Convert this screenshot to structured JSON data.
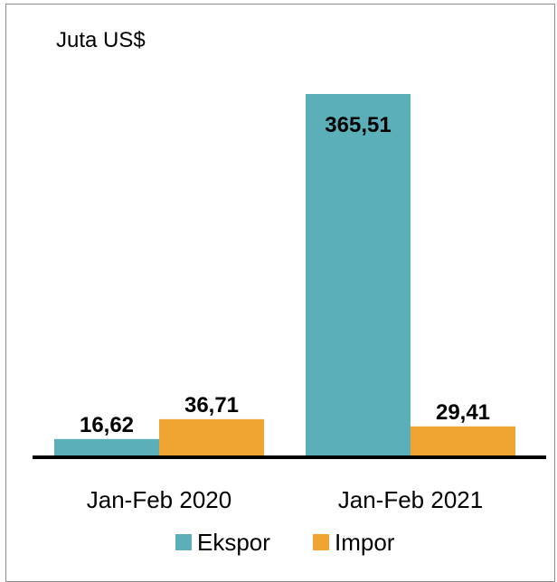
{
  "chart_data": {
    "type": "bar",
    "unit_label": "Juta US$",
    "categories": [
      "Jan-Feb 2020",
      "Jan-Feb 2021"
    ],
    "series": [
      {
        "name": "Ekspor",
        "color": "#5bafb8",
        "values": [
          16.62,
          365.51
        ],
        "labels": [
          "16,62",
          "365,51"
        ]
      },
      {
        "name": "Impor",
        "color": "#f0a431",
        "values": [
          36.71,
          29.41
        ],
        "labels": [
          "36,71",
          "29,41"
        ]
      }
    ],
    "ylim": [
      0,
      400
    ],
    "grid": false,
    "legend_position": "bottom"
  }
}
